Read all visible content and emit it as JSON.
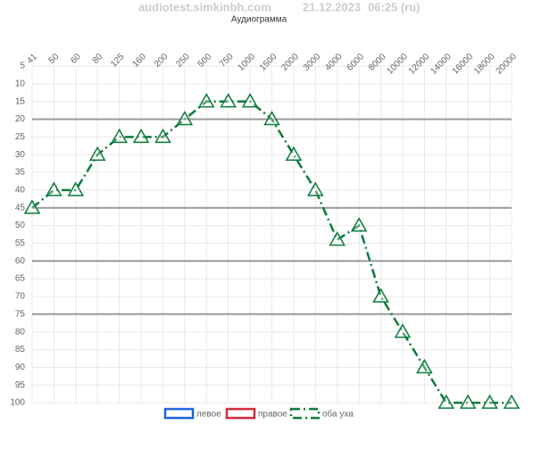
{
  "chart_data": {
    "type": "line",
    "site": "audiotest.simkinbh.com",
    "date": "21.12.2023",
    "time": "06:25 (ru)",
    "title": "Аудиограмма",
    "categories": [
      "41",
      "50",
      "60",
      "80",
      "125",
      "160",
      "200",
      "250",
      "500",
      "750",
      "1000",
      "1500",
      "2000",
      "3000",
      "4000",
      "6000",
      "8000",
      "10000",
      "12000",
      "14000",
      "16000",
      "18000",
      "20000"
    ],
    "series": [
      {
        "name": "левое",
        "color": "#1f62e0",
        "values": [
          null,
          null,
          null,
          null,
          null,
          null,
          null,
          null,
          null,
          null,
          null,
          null,
          null,
          null,
          null,
          null,
          null,
          null,
          null,
          null,
          null,
          null,
          null
        ]
      },
      {
        "name": "правое",
        "color": "#d12a3c",
        "values": [
          null,
          null,
          null,
          null,
          null,
          null,
          null,
          null,
          null,
          null,
          null,
          null,
          null,
          null,
          null,
          null,
          null,
          null,
          null,
          null,
          null,
          null,
          null
        ]
      },
      {
        "name": "оба уха",
        "color": "#0b7a3b",
        "values": [
          45,
          40,
          40,
          30,
          25,
          25,
          25,
          20,
          15,
          15,
          15,
          20,
          30,
          40,
          54,
          50,
          70,
          80,
          90,
          100,
          100,
          100,
          100
        ]
      }
    ],
    "ylim": [
      5,
      100
    ],
    "y_reversed": true,
    "yticks": [
      5,
      10,
      15,
      20,
      25,
      30,
      35,
      40,
      45,
      50,
      55,
      60,
      65,
      70,
      75,
      80,
      85,
      90,
      95,
      100
    ],
    "reference_lines": [
      20,
      45,
      60,
      75
    ],
    "grid": true,
    "legend": "bottom"
  }
}
